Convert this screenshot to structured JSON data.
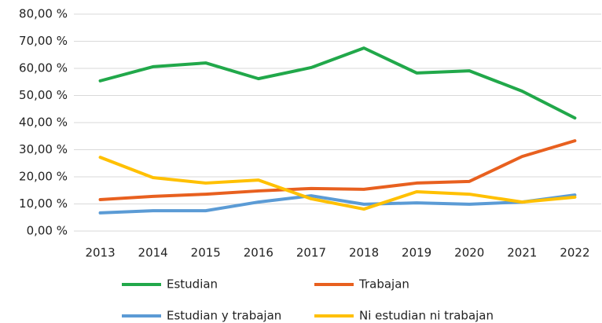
{
  "chart_data": {
    "type": "line",
    "categories": [
      "2013",
      "2014",
      "2015",
      "2016",
      "2017",
      "2018",
      "2019",
      "2020",
      "2021",
      "2022"
    ],
    "series": [
      {
        "name": "Estudian",
        "color": "#21a84a",
        "values": [
          55.4,
          60.6,
          62.0,
          56.2,
          60.3,
          67.5,
          58.3,
          59.1,
          51.6,
          41.7
        ]
      },
      {
        "name": "Trabajan",
        "color": "#e8601f",
        "values": [
          11.6,
          12.8,
          13.6,
          14.8,
          15.7,
          15.4,
          17.7,
          18.3,
          27.5,
          33.3
        ]
      },
      {
        "name": "Estudian y trabajan",
        "color": "#5b9bd5",
        "values": [
          6.7,
          7.5,
          7.5,
          10.7,
          13.0,
          9.9,
          10.4,
          9.9,
          10.7,
          13.3
        ]
      },
      {
        "name": "Ni estudian ni trabajan",
        "color": "#ffc000",
        "values": [
          27.2,
          19.7,
          17.7,
          18.8,
          11.9,
          8.1,
          14.5,
          13.6,
          10.7,
          12.5
        ]
      }
    ],
    "ylim": [
      0,
      80
    ],
    "yticks": [
      {
        "value": 0,
        "label": "0,00 %"
      },
      {
        "value": 10,
        "label": "10,00 %"
      },
      {
        "value": 20,
        "label": "20,00 %"
      },
      {
        "value": 30,
        "label": "30,00 %"
      },
      {
        "value": 40,
        "label": "40,00 %"
      },
      {
        "value": 50,
        "label": "50,00 %"
      },
      {
        "value": 60,
        "label": "60,00 %"
      },
      {
        "value": 70,
        "label": "70,00 %"
      },
      {
        "value": 80,
        "label": "80,00 %"
      }
    ],
    "grid": true,
    "legend": "bottom"
  }
}
